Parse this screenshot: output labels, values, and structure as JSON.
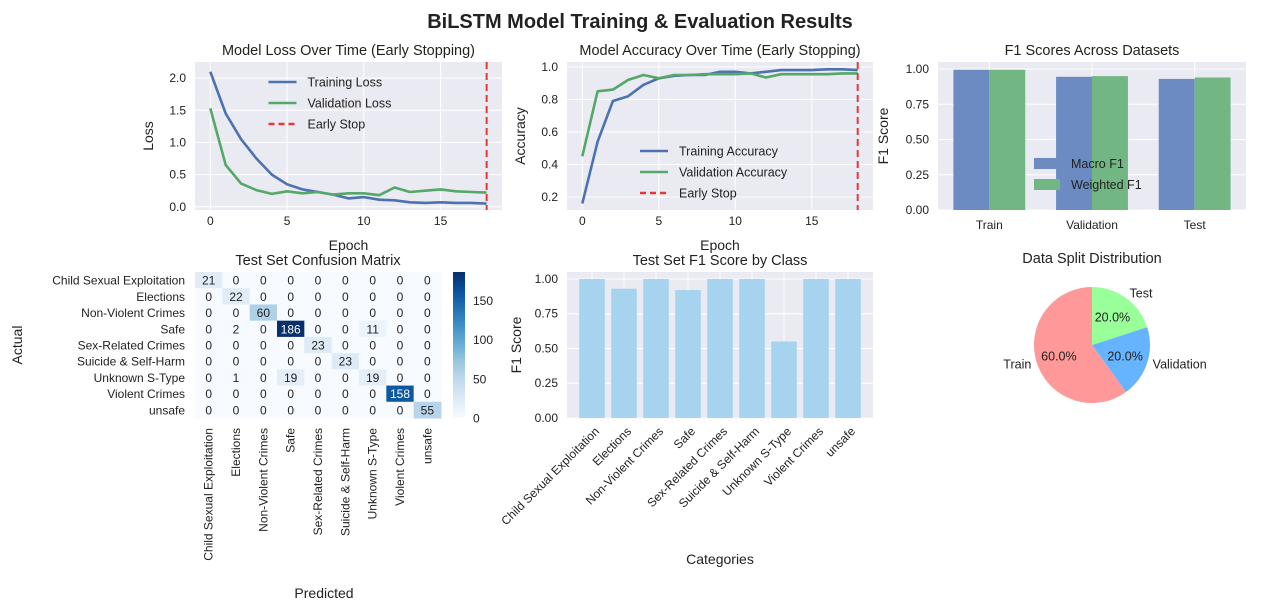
{
  "suptitle": "BiLSTM Model Training & Evaluation Results",
  "colors": {
    "axes_bg": "#EAEAF2",
    "grid": "#FFFFFF",
    "train": "#4C72B0",
    "validation": "#55A868",
    "early_stop": "#E53935",
    "bar_macro": "#6B8BC2",
    "bar_weighted": "#72B783",
    "class_bar": "#A6D4EE",
    "pie_train": "#FF9999",
    "pie_validation": "#66B3FF",
    "pie_test": "#99FF99"
  },
  "chart_data": [
    {
      "id": "loss",
      "type": "line",
      "title": "Model Loss Over Time (Early Stopping)",
      "xlabel": "Epoch",
      "ylabel": "Loss",
      "xlim": [
        -1,
        19
      ],
      "ylim": [
        -0.05,
        2.25
      ],
      "xticks": [
        0,
        5,
        10,
        15
      ],
      "yticks": [
        0.0,
        0.5,
        1.0,
        1.5,
        2.0
      ],
      "ytick_labels": [
        "0.0",
        "0.5",
        "1.0",
        "1.5",
        "2.0"
      ],
      "grid": true,
      "legend_position": "upper center",
      "x": [
        0,
        1,
        2,
        3,
        4,
        5,
        6,
        7,
        8,
        9,
        10,
        11,
        12,
        13,
        14,
        15,
        16,
        17,
        18
      ],
      "series": [
        {
          "name": "Training Loss",
          "values": [
            2.1,
            1.45,
            1.05,
            0.75,
            0.5,
            0.35,
            0.27,
            0.23,
            0.19,
            0.13,
            0.15,
            0.11,
            0.1,
            0.07,
            0.06,
            0.07,
            0.06,
            0.06,
            0.05
          ]
        },
        {
          "name": "Validation Loss",
          "values": [
            1.53,
            0.65,
            0.36,
            0.26,
            0.2,
            0.24,
            0.21,
            0.23,
            0.19,
            0.21,
            0.21,
            0.18,
            0.3,
            0.23,
            0.25,
            0.27,
            0.24,
            0.23,
            0.22
          ]
        }
      ],
      "early_stop": {
        "name": "Early Stop",
        "x": 18
      }
    },
    {
      "id": "accuracy",
      "type": "line",
      "title": "Model Accuracy Over Time (Early Stopping)",
      "xlabel": "Epoch",
      "ylabel": "Accuracy",
      "xlim": [
        -1,
        19
      ],
      "ylim": [
        0.12,
        1.03
      ],
      "xticks": [
        0,
        5,
        10,
        15
      ],
      "yticks": [
        0.2,
        0.4,
        0.6,
        0.8,
        1.0
      ],
      "ytick_labels": [
        "0.2",
        "0.4",
        "0.6",
        "0.8",
        "1.0"
      ],
      "grid": true,
      "legend_position": "lower center",
      "x": [
        0,
        1,
        2,
        3,
        4,
        5,
        6,
        7,
        8,
        9,
        10,
        11,
        12,
        13,
        14,
        15,
        16,
        17,
        18
      ],
      "series": [
        {
          "name": "Training Accuracy",
          "values": [
            0.16,
            0.54,
            0.79,
            0.82,
            0.89,
            0.93,
            0.945,
            0.95,
            0.95,
            0.97,
            0.97,
            0.96,
            0.97,
            0.98,
            0.98,
            0.98,
            0.985,
            0.985,
            0.98
          ]
        },
        {
          "name": "Validation Accuracy",
          "values": [
            0.45,
            0.85,
            0.86,
            0.92,
            0.95,
            0.93,
            0.95,
            0.95,
            0.955,
            0.955,
            0.955,
            0.96,
            0.935,
            0.955,
            0.955,
            0.955,
            0.955,
            0.96,
            0.96
          ]
        }
      ],
      "early_stop": {
        "name": "Early Stop",
        "x": 18
      }
    },
    {
      "id": "f1_datasets",
      "type": "bar",
      "title": "F1 Scores Across Datasets",
      "ylabel": "F1 Score",
      "ylim": [
        0,
        1.05
      ],
      "yticks": [
        0.0,
        0.25,
        0.5,
        0.75,
        1.0
      ],
      "ytick_labels": [
        "0.00",
        "0.25",
        "0.50",
        "0.75",
        "1.00"
      ],
      "grid": true,
      "legend_position": "lower right",
      "categories": [
        "Train",
        "Validation",
        "Test"
      ],
      "series": [
        {
          "name": "Macro F1",
          "values": [
            0.995,
            0.945,
            0.93
          ]
        },
        {
          "name": "Weighted F1",
          "values": [
            0.995,
            0.95,
            0.94
          ]
        }
      ]
    },
    {
      "id": "confusion",
      "type": "heatmap",
      "title": "Test Set Confusion Matrix",
      "xlabel": "Predicted",
      "ylabel": "Actual",
      "labels": [
        "Child Sexual Exploitation",
        "Elections",
        "Non-Violent Crimes",
        "Safe",
        "Sex-Related Crimes",
        "Suicide & Self-Harm",
        "Unknown S-Type",
        "Violent Crimes",
        "unsafe"
      ],
      "matrix": [
        [
          21,
          0,
          0,
          0,
          0,
          0,
          0,
          0,
          0
        ],
        [
          0,
          22,
          0,
          0,
          0,
          0,
          0,
          0,
          0
        ],
        [
          0,
          0,
          60,
          0,
          0,
          0,
          0,
          0,
          0
        ],
        [
          0,
          2,
          0,
          186,
          0,
          0,
          11,
          0,
          0
        ],
        [
          0,
          0,
          0,
          0,
          23,
          0,
          0,
          0,
          0
        ],
        [
          0,
          0,
          0,
          0,
          0,
          23,
          0,
          0,
          0
        ],
        [
          0,
          1,
          0,
          19,
          0,
          0,
          19,
          0,
          0
        ],
        [
          0,
          0,
          0,
          0,
          0,
          0,
          0,
          158,
          0
        ],
        [
          0,
          0,
          0,
          0,
          0,
          0,
          0,
          0,
          55
        ]
      ],
      "vmin": 0,
      "vmax": 186,
      "colorbar_ticks": [
        0,
        50,
        100,
        150
      ],
      "colorbar_tick_labels": [
        "0",
        "50",
        "100",
        "150"
      ]
    },
    {
      "id": "f1_class",
      "type": "bar",
      "title": "Test Set F1 Score by Class",
      "xlabel": "Categories",
      "ylabel": "F1 Score",
      "ylim": [
        0,
        1.05
      ],
      "yticks": [
        0.0,
        0.25,
        0.5,
        0.75,
        1.0
      ],
      "ytick_labels": [
        "0.00",
        "0.25",
        "0.50",
        "0.75",
        "1.00"
      ],
      "grid": true,
      "categories": [
        "Child Sexual Exploitation",
        "Elections",
        "Non-Violent Crimes",
        "Safe",
        "Sex-Related Crimes",
        "Suicide & Self-Harm",
        "Unknown S-Type",
        "Violent Crimes",
        "unsafe"
      ],
      "values": [
        1.0,
        0.93,
        1.0,
        0.92,
        1.0,
        1.0,
        0.55,
        1.0,
        1.0
      ]
    },
    {
      "id": "split",
      "type": "pie",
      "title": "Data Split Distribution",
      "labels": [
        "Train",
        "Validation",
        "Test"
      ],
      "values": [
        60.0,
        20.0,
        20.0
      ],
      "pct_labels": [
        "60.0%",
        "20.0%",
        "20.0%"
      ]
    }
  ]
}
